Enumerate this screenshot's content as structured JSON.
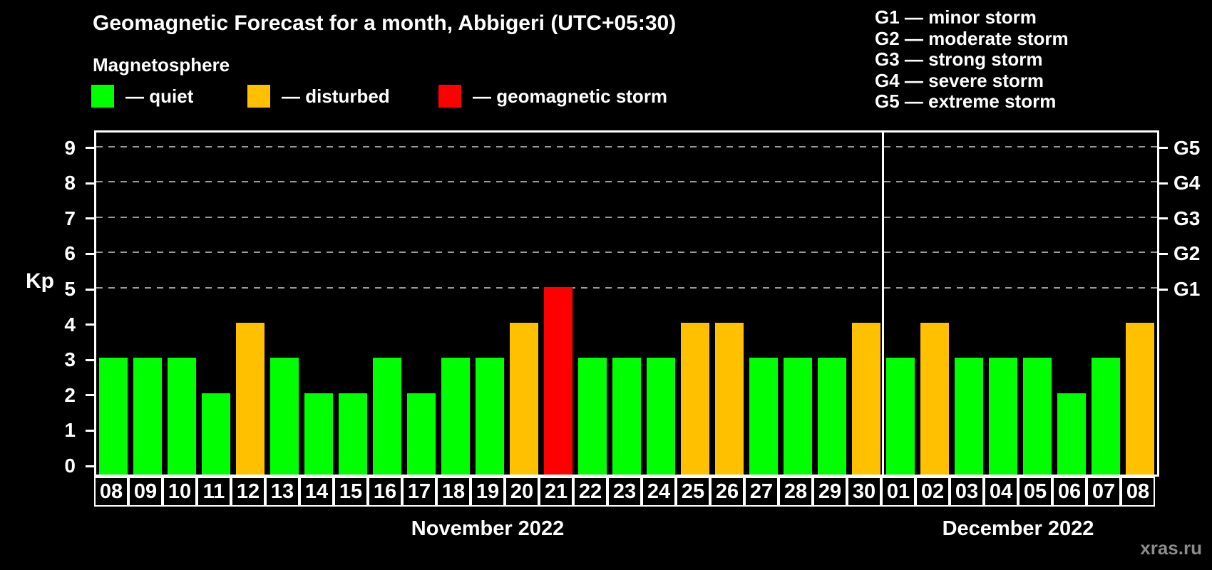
{
  "title": "Geomagnetic Forecast for a month, Abbigeri (UTC+05:30)",
  "legend": {
    "heading": "Magnetosphere",
    "items": [
      {
        "name": "quiet",
        "label": "— quiet",
        "color": "#00ff00"
      },
      {
        "name": "disturbed",
        "label": "— disturbed",
        "color": "#ffc000"
      },
      {
        "name": "storm",
        "label": "— geomagnetic storm",
        "color": "#ff0000"
      }
    ]
  },
  "g_scale": [
    "G1 — minor storm",
    "G2 — moderate storm",
    "G3 — strong storm",
    "G4 — severe storm",
    "G5 — extreme storm"
  ],
  "watermark": "xras.ru",
  "chart_data": {
    "type": "bar",
    "title": "Geomagnetic Forecast for a month, Abbigeri (UTC+05:30)",
    "xlabel": "",
    "ylabel": "Kp",
    "ylim": [
      0,
      9.7
    ],
    "y_ticks": [
      0,
      1,
      2,
      3,
      4,
      5,
      6,
      7,
      8,
      9
    ],
    "right_axis_ticks": [
      {
        "label": "G1",
        "kp": 5
      },
      {
        "label": "G2",
        "kp": 6
      },
      {
        "label": "G3",
        "kp": 7
      },
      {
        "label": "G4",
        "kp": 8
      },
      {
        "label": "G5",
        "kp": 9
      }
    ],
    "grid": "dashed horizontal gridlines at Kp 5,6,7,8,9",
    "legend_position": "top",
    "colors": {
      "quiet": "#00ff00",
      "disturbed": "#ffc000",
      "storm": "#ff0000"
    },
    "months": [
      {
        "label": "November 2022",
        "days": 23
      },
      {
        "label": "December 2022",
        "days": 8
      }
    ],
    "bars": [
      {
        "day": "08",
        "kp": 3,
        "status": "quiet"
      },
      {
        "day": "09",
        "kp": 3,
        "status": "quiet"
      },
      {
        "day": "10",
        "kp": 3,
        "status": "quiet"
      },
      {
        "day": "11",
        "kp": 2,
        "status": "quiet"
      },
      {
        "day": "12",
        "kp": 4,
        "status": "disturbed"
      },
      {
        "day": "13",
        "kp": 3,
        "status": "quiet"
      },
      {
        "day": "14",
        "kp": 2,
        "status": "quiet"
      },
      {
        "day": "15",
        "kp": 2,
        "status": "quiet"
      },
      {
        "day": "16",
        "kp": 3,
        "status": "quiet"
      },
      {
        "day": "17",
        "kp": 2,
        "status": "quiet"
      },
      {
        "day": "18",
        "kp": 3,
        "status": "quiet"
      },
      {
        "day": "19",
        "kp": 3,
        "status": "quiet"
      },
      {
        "day": "20",
        "kp": 4,
        "status": "disturbed"
      },
      {
        "day": "21",
        "kp": 5,
        "status": "storm"
      },
      {
        "day": "22",
        "kp": 3,
        "status": "quiet"
      },
      {
        "day": "23",
        "kp": 3,
        "status": "quiet"
      },
      {
        "day": "24",
        "kp": 3,
        "status": "quiet"
      },
      {
        "day": "25",
        "kp": 4,
        "status": "disturbed"
      },
      {
        "day": "26",
        "kp": 4,
        "status": "disturbed"
      },
      {
        "day": "27",
        "kp": 3,
        "status": "quiet"
      },
      {
        "day": "28",
        "kp": 3,
        "status": "quiet"
      },
      {
        "day": "29",
        "kp": 3,
        "status": "quiet"
      },
      {
        "day": "30",
        "kp": 4,
        "status": "disturbed"
      },
      {
        "day": "01",
        "kp": 3,
        "status": "quiet"
      },
      {
        "day": "02",
        "kp": 4,
        "status": "disturbed"
      },
      {
        "day": "03",
        "kp": 3,
        "status": "quiet"
      },
      {
        "day": "04",
        "kp": 3,
        "status": "quiet"
      },
      {
        "day": "05",
        "kp": 3,
        "status": "quiet"
      },
      {
        "day": "06",
        "kp": 2,
        "status": "quiet"
      },
      {
        "day": "07",
        "kp": 3,
        "status": "quiet"
      },
      {
        "day": "08",
        "kp": 4,
        "status": "disturbed"
      }
    ]
  }
}
